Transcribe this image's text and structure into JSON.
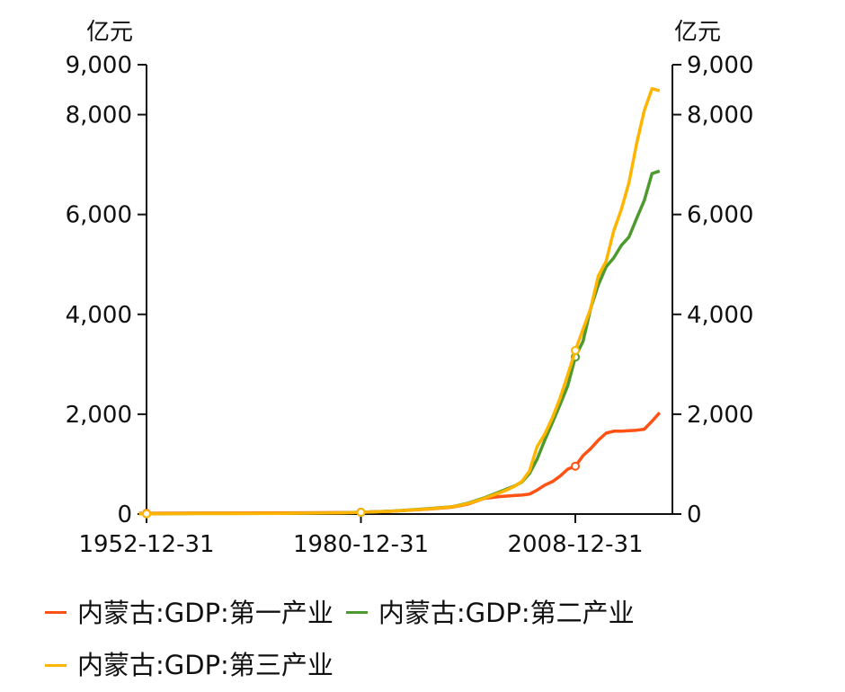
{
  "chart_data": {
    "type": "line",
    "title": "",
    "ylabel_left": "亿元",
    "ylabel_right": "亿元",
    "ylim": [
      0,
      9000
    ],
    "xlim": [
      1952,
      2021
    ],
    "y_ticks": [
      0,
      2000,
      4000,
      6000,
      8000,
      9000
    ],
    "y_tick_labels": [
      "0",
      "2,000",
      "4,000",
      "6,000",
      "8,000",
      "9,000"
    ],
    "x_ticks": [
      1952.99,
      1980.99,
      2008.99
    ],
    "x_tick_labels": [
      "1952-12-31",
      "1980-12-31",
      "2008-12-31"
    ],
    "grid": false,
    "legend_position": "bottom",
    "series": [
      {
        "name": "内蒙古:GDP:第一产业",
        "color": "#FF5214",
        "x": [
          1952,
          1960,
          1970,
          1978,
          1980,
          1985,
          1990,
          1993,
          1995,
          1997,
          1999,
          2000,
          2001,
          2002,
          2003,
          2004,
          2005,
          2006,
          2007,
          2008,
          2009,
          2010,
          2011,
          2012,
          2013,
          2014,
          2015,
          2016,
          2017,
          2018,
          2019,
          2020
        ],
        "y": [
          15,
          20,
          22,
          28,
          30,
          55,
          100,
          140,
          200,
          310,
          350,
          360,
          370,
          380,
          400,
          480,
          580,
          650,
          760,
          900,
          960,
          1170,
          1310,
          1480,
          1620,
          1660,
          1660,
          1670,
          1680,
          1700,
          1860,
          2030
        ],
        "marker_x": [
          1952.99,
          1980.99,
          2008.99
        ]
      },
      {
        "name": "内蒙古:GDP:第二产业",
        "color": "#4E9A2E",
        "x": [
          1952,
          1960,
          1970,
          1978,
          1980,
          1985,
          1990,
          1993,
          1995,
          1997,
          1999,
          2000,
          2001,
          2002,
          2003,
          2004,
          2005,
          2006,
          2007,
          2008,
          2009,
          2010,
          2011,
          2012,
          2013,
          2014,
          2015,
          2016,
          2017,
          2018,
          2019,
          2020
        ],
        "y": [
          5,
          10,
          15,
          25,
          30,
          60,
          110,
          150,
          220,
          320,
          440,
          500,
          560,
          640,
          810,
          1100,
          1480,
          1830,
          2190,
          2570,
          3150,
          3460,
          4120,
          4590,
          4950,
          5130,
          5380,
          5550,
          5920,
          6280,
          6820,
          6870
        ],
        "marker_x": [
          1952.99,
          1980.99,
          2008.99
        ]
      },
      {
        "name": "内蒙古:GDP:第三产业",
        "color": "#FFB400",
        "x": [
          1952,
          1960,
          1970,
          1978,
          1980,
          1985,
          1990,
          1993,
          1995,
          1997,
          1999,
          2000,
          2001,
          2002,
          2003,
          2004,
          2005,
          2006,
          2007,
          2008,
          2009,
          2010,
          2011,
          2012,
          2013,
          2014,
          2015,
          2016,
          2017,
          2018,
          2019,
          2020
        ],
        "y": [
          5,
          10,
          12,
          22,
          28,
          55,
          105,
          145,
          210,
          310,
          420,
          480,
          550,
          650,
          860,
          1350,
          1600,
          1930,
          2320,
          2790,
          3280,
          3700,
          4120,
          4770,
          5060,
          5670,
          6100,
          6640,
          7420,
          8080,
          8520,
          8480
        ],
        "marker_x": [
          1952.99,
          1980.99,
          2008.99
        ]
      }
    ]
  }
}
